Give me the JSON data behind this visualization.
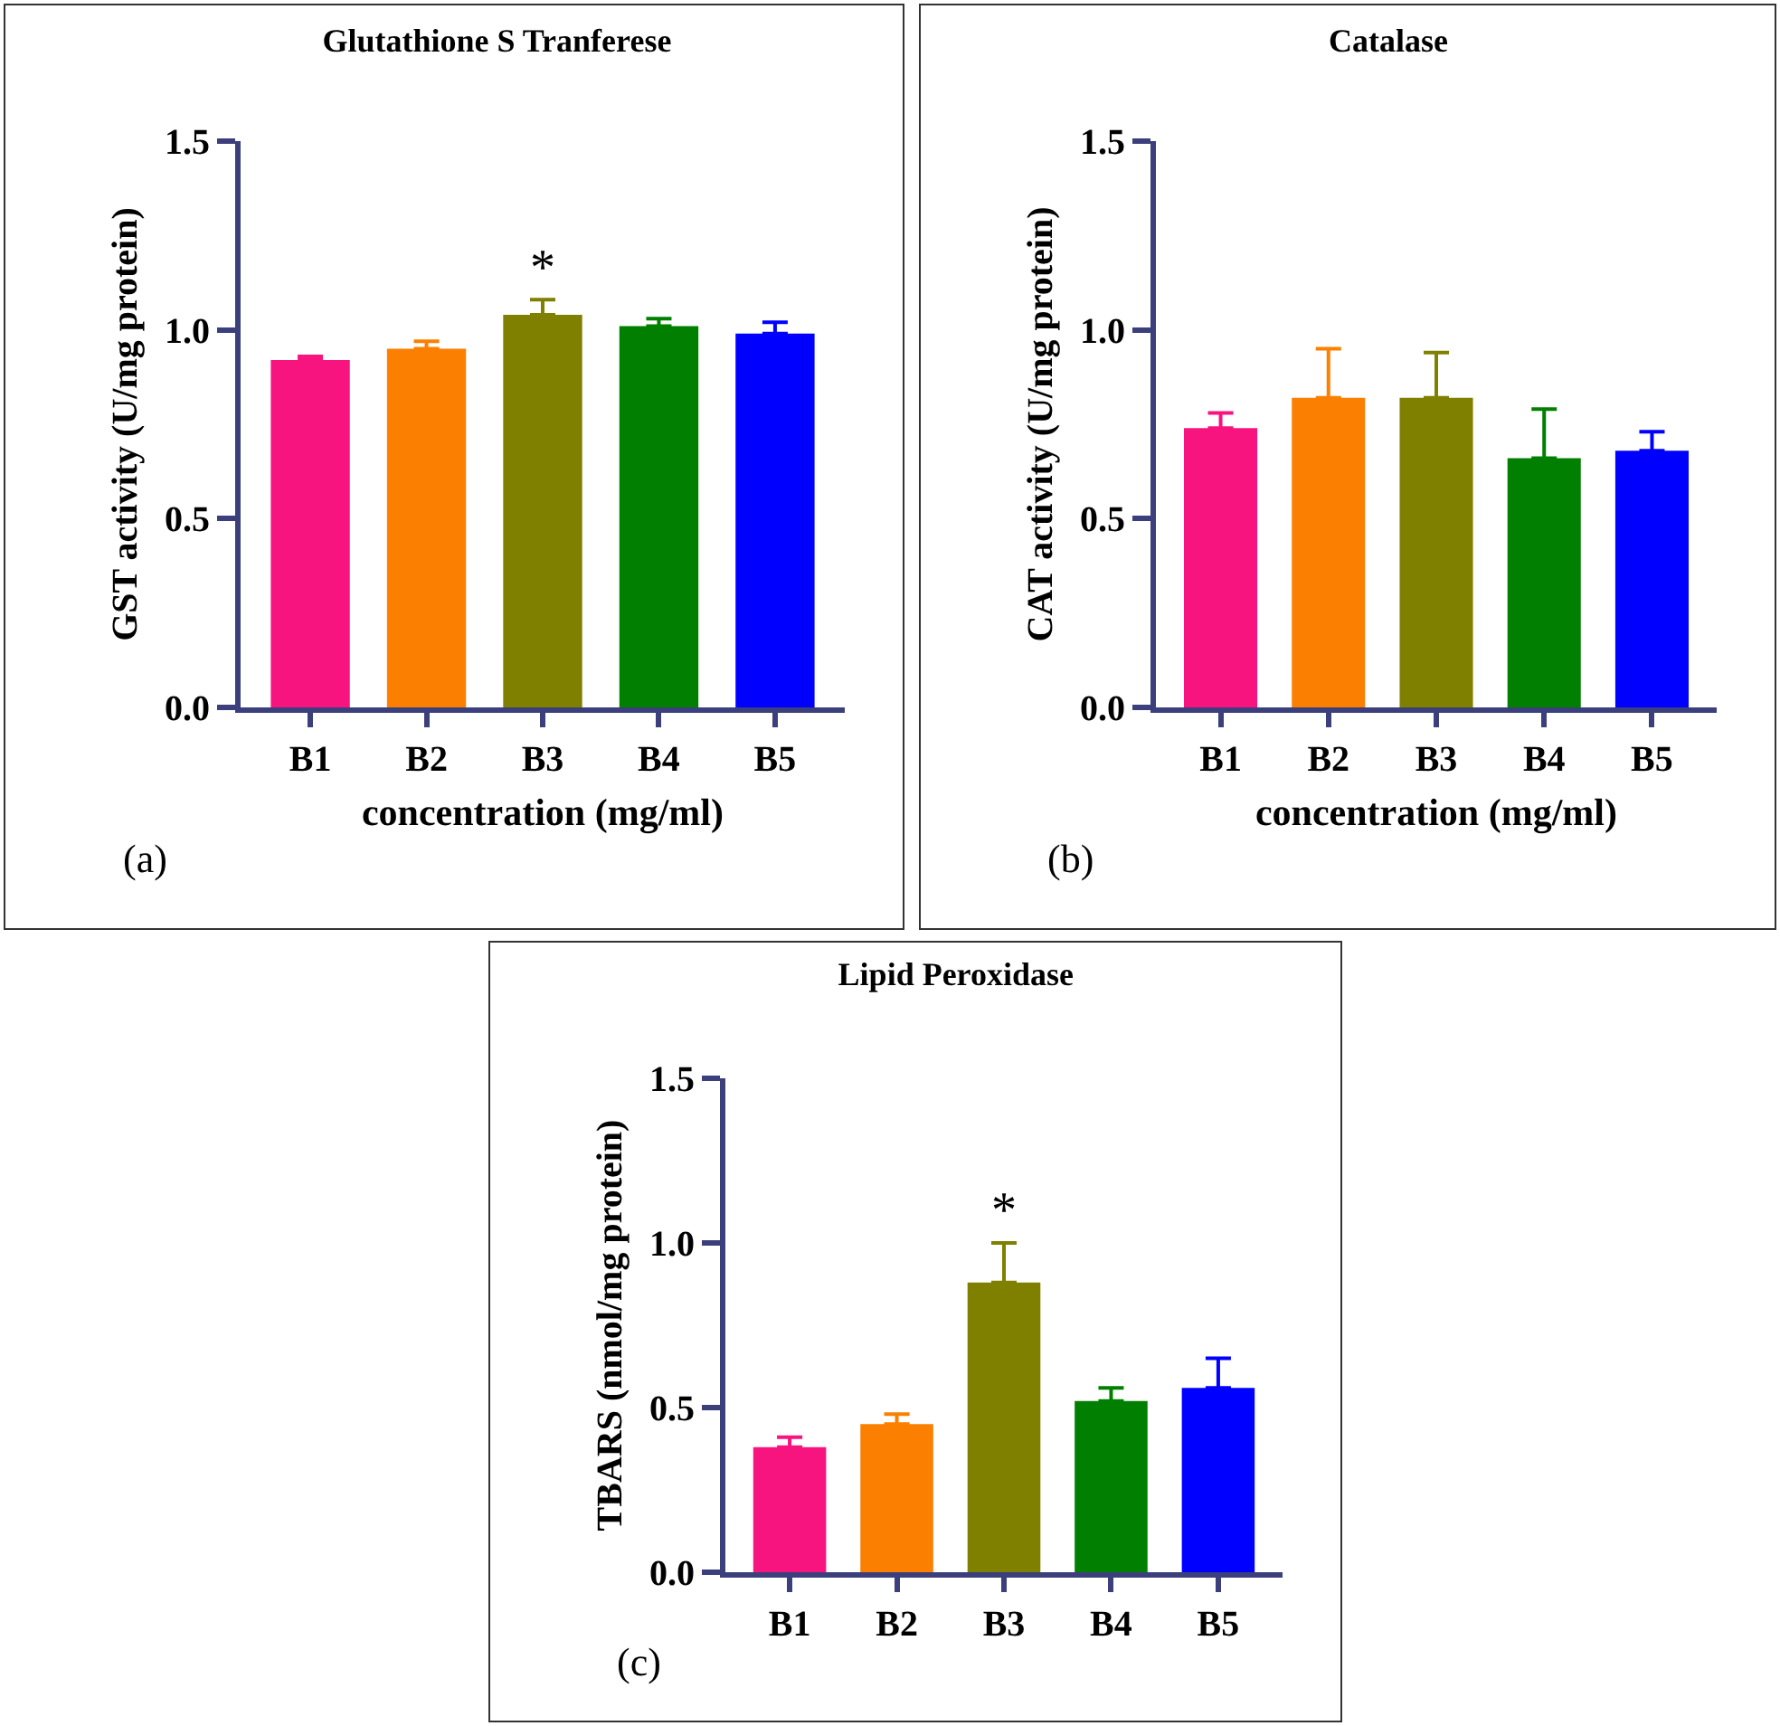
{
  "chart_data": [
    {
      "type": "bar",
      "title": "Glutathione S Tranferese",
      "xlabel": "concentration (mg/ml)",
      "ylabel": "GST activity (U/mg protein)",
      "categories": [
        "B1",
        "B2",
        "B3",
        "B4",
        "B5"
      ],
      "values": [
        0.92,
        0.95,
        1.04,
        1.01,
        0.99
      ],
      "colors": [
        "#f7147f",
        "#fb7f00",
        "#808000",
        "#007f00",
        "#0000ff"
      ],
      "errors": [
        [
          0.92,
          0.93
        ],
        [
          0.95,
          0.97
        ],
        [
          1.04,
          1.08
        ],
        [
          1.01,
          1.03
        ],
        [
          0.99,
          1.02
        ]
      ],
      "ylim": [
        0,
        1.5
      ],
      "yticks": [
        {
          "value": 0,
          "label": "0.0"
        },
        {
          "value": 0.5,
          "label": "0.5"
        },
        {
          "value": 1,
          "label": "1.0"
        },
        {
          "value": 1.5,
          "label": "1.5"
        }
      ],
      "grid": false,
      "annotations": [
        {
          "text": "*",
          "x": "B3",
          "y": 1.08
        },
        "(a)"
      ]
    },
    {
      "type": "bar",
      "title": "Catalase",
      "xlabel": "concentration (mg/ml)",
      "ylabel": "CAT activity (U/mg protein)",
      "categories": [
        "B1",
        "B2",
        "B3",
        "B4",
        "B5"
      ],
      "values": [
        0.74,
        0.82,
        0.82,
        0.66,
        0.68
      ],
      "colors": [
        "#f7147f",
        "#fb7f00",
        "#808000",
        "#007f00",
        "#0000ff"
      ],
      "errors": [
        [
          0.74,
          0.78
        ],
        [
          0.82,
          0.95
        ],
        [
          0.82,
          0.94
        ],
        [
          0.66,
          0.79
        ],
        [
          0.68,
          0.73
        ]
      ],
      "ylim": [
        0,
        1.5
      ],
      "yticks": [
        {
          "value": 0,
          "label": "0.0"
        },
        {
          "value": 0.5,
          "label": "0.5"
        },
        {
          "value": 1,
          "label": "1.0"
        },
        {
          "value": 1.5,
          "label": "1.5"
        }
      ],
      "grid": false,
      "annotations": [
        "(b)"
      ]
    },
    {
      "type": "bar",
      "title": "Lipid Peroxidase",
      "ylabel": "TBARS (nmol/mg protein)",
      "categories": [
        "B1",
        "B2",
        "B3",
        "B4",
        "B5"
      ],
      "values": [
        0.38,
        0.45,
        0.88,
        0.52,
        0.56
      ],
      "colors": [
        "#f7147f",
        "#fb7f00",
        "#808000",
        "#007f00",
        "#0000ff"
      ],
      "errors": [
        [
          0.38,
          0.41
        ],
        [
          0.45,
          0.48
        ],
        [
          0.88,
          1.0
        ],
        [
          0.52,
          0.56
        ],
        [
          0.56,
          0.65
        ]
      ],
      "ylim": [
        0,
        1.5
      ],
      "yticks": [
        {
          "value": 0,
          "label": "0.0"
        },
        {
          "value": 0.5,
          "label": "0.5"
        },
        {
          "value": 1,
          "label": "1.0"
        },
        {
          "value": 1.5,
          "label": "1.5"
        }
      ],
      "grid": false,
      "annotations": [
        {
          "text": "*",
          "x": "B3",
          "y": 1.0
        },
        "(c)"
      ]
    }
  ]
}
